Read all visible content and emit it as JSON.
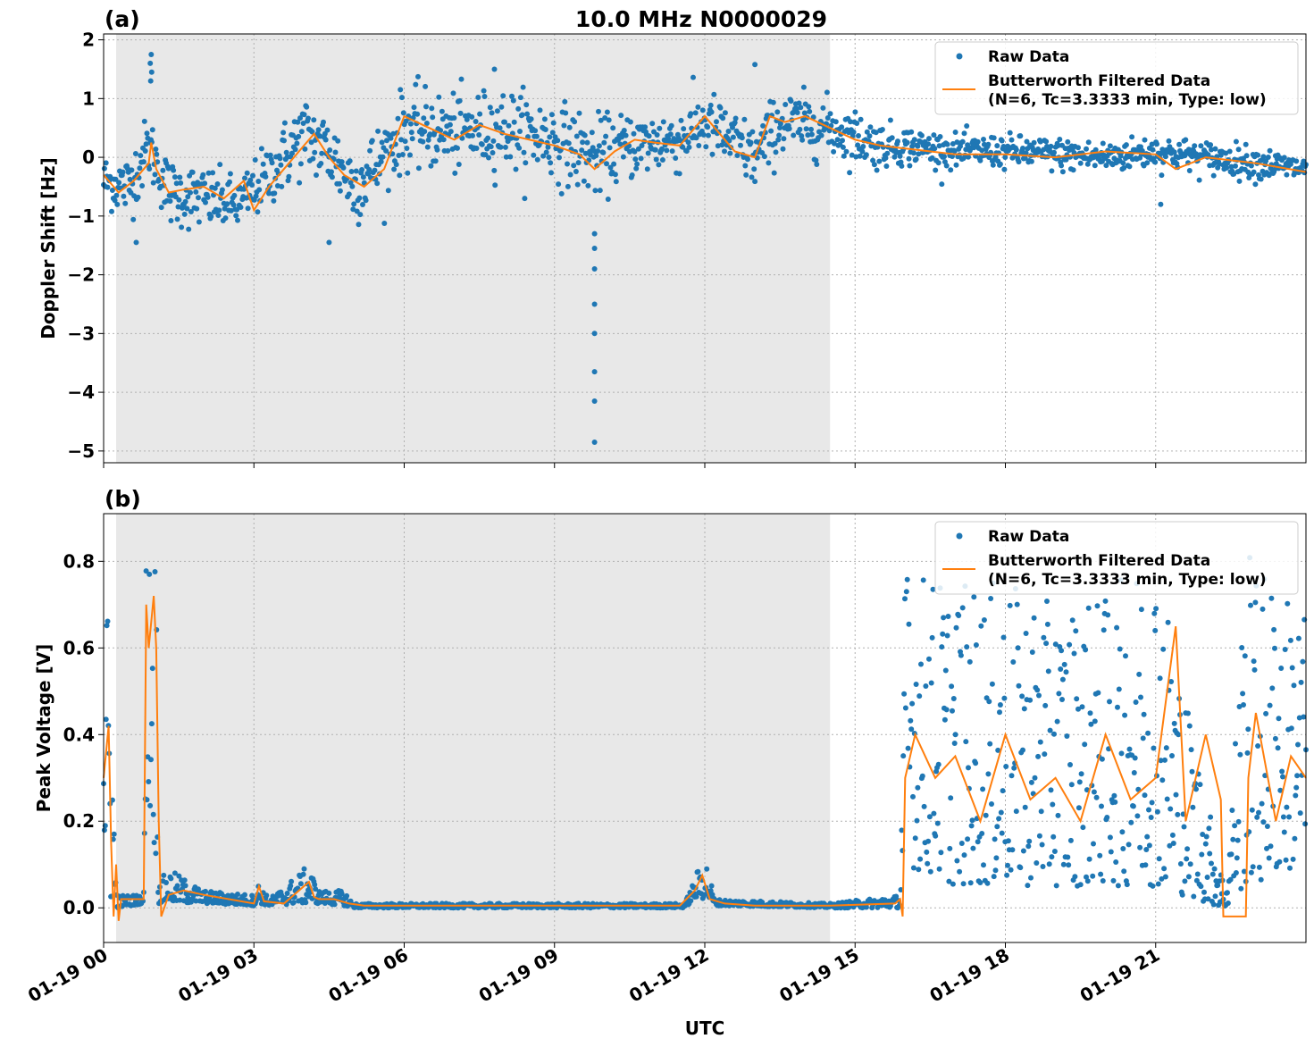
{
  "figure": {
    "title": "10.0 MHz N0000029",
    "xlabel": "UTC",
    "x_tick_labels": [
      "01-19 00",
      "01-19 03",
      "01-19 06",
      "01-19 09",
      "01-19 12",
      "01-19 15",
      "01-19 18",
      "01-19 21"
    ]
  },
  "colors": {
    "raw": "#1f77b4",
    "filtered": "#ff7f0e",
    "shade": "#e8e8e8",
    "grid": "#b0b0b0"
  },
  "chart_data": [
    {
      "type": "scatter",
      "panel_label": "(a)",
      "title": "10.0 MHz N0000029",
      "ylabel": "Doppler Shift [Hz]",
      "xlabel": "UTC",
      "x_range_hours": [
        0,
        24
      ],
      "xlim": [
        "01-19 00:00",
        "01-20 00:00"
      ],
      "ylim": [
        -5.2,
        2.1
      ],
      "y_ticks": [
        2,
        1,
        0,
        -1,
        -2,
        -3,
        -4,
        -5
      ],
      "y_tick_labels": [
        "2",
        "1",
        "0",
        "−1",
        "−2",
        "−3",
        "−4",
        "−5"
      ],
      "grid": true,
      "shaded_region_hours": [
        0.25,
        14.5
      ],
      "legend": {
        "placement": "top-right",
        "entries": [
          "Raw Data",
          "Butterworth Filtered Data",
          "(N=6, Tc=3.3333 min, Type: low)"
        ]
      },
      "series": [
        {
          "name": "Raw Data",
          "style": "points",
          "envelope_hours": [
            0,
            0.5,
            0.9,
            1.3,
            2,
            2.7,
            3.3,
            4,
            4.5,
            5,
            5.5,
            6,
            7,
            8,
            9,
            9.8,
            10.5,
            11.5,
            12,
            13,
            13.5,
            14.5,
            15.5,
            16,
            17,
            18,
            19,
            20,
            21,
            22,
            23,
            24
          ],
          "center_hz": [
            -0.4,
            -0.5,
            0.2,
            -0.6,
            -0.7,
            -0.8,
            -0.3,
            0.4,
            0.1,
            -0.5,
            -0.1,
            0.5,
            0.4,
            0.5,
            0.3,
            0.0,
            0.2,
            0.3,
            0.6,
            0.0,
            0.6,
            0.5,
            0.2,
            0.2,
            0.1,
            0.1,
            0.05,
            0.0,
            0.1,
            0.0,
            -0.1,
            -0.2
          ],
          "spread_hz": [
            0.4,
            0.5,
            0.5,
            0.5,
            0.5,
            0.4,
            0.5,
            0.6,
            0.6,
            0.6,
            0.6,
            0.6,
            0.6,
            0.6,
            0.6,
            0.6,
            0.5,
            0.5,
            0.5,
            0.5,
            0.5,
            0.45,
            0.35,
            0.3,
            0.25,
            0.25,
            0.25,
            0.25,
            0.25,
            0.25,
            0.25,
            0.2
          ],
          "outliers": [
            {
              "x": 0.95,
              "y": 1.75
            },
            {
              "x": 0.93,
              "y": 1.6
            },
            {
              "x": 0.96,
              "y": 1.45
            },
            {
              "x": 0.94,
              "y": 1.3
            },
            {
              "x": 9.8,
              "y": -1.3
            },
            {
              "x": 9.8,
              "y": -1.55
            },
            {
              "x": 9.8,
              "y": -1.9
            },
            {
              "x": 9.8,
              "y": -2.5
            },
            {
              "x": 9.8,
              "y": -3.0
            },
            {
              "x": 9.8,
              "y": -3.65
            },
            {
              "x": 9.8,
              "y": -4.15
            },
            {
              "x": 9.8,
              "y": -4.85
            },
            {
              "x": 13.0,
              "y": 1.58
            },
            {
              "x": 7.8,
              "y": 1.5
            },
            {
              "x": 4.5,
              "y": -1.45
            },
            {
              "x": 0.65,
              "y": -1.45
            },
            {
              "x": 21.1,
              "y": -0.8
            }
          ]
        },
        {
          "name": "Butterworth Filtered Data",
          "style": "line",
          "x_hours": [
            0,
            0.3,
            0.6,
            0.9,
            0.95,
            1.05,
            1.3,
            1.6,
            2.0,
            2.4,
            2.8,
            3.0,
            3.3,
            3.6,
            4.0,
            4.2,
            4.5,
            4.8,
            5.2,
            5.6,
            6.0,
            6.5,
            7.0,
            7.5,
            8.0,
            8.5,
            9.0,
            9.5,
            9.8,
            10.2,
            10.6,
            11.0,
            11.5,
            12.0,
            12.3,
            12.6,
            13.0,
            13.3,
            13.6,
            14.0,
            14.5,
            15.0,
            15.5,
            16.0,
            17.0,
            18.0,
            19.0,
            20.0,
            21.0,
            21.4,
            22.0,
            23.0,
            24.0
          ],
          "y_hz": [
            -0.3,
            -0.6,
            -0.4,
            -0.1,
            0.25,
            -0.2,
            -0.6,
            -0.55,
            -0.5,
            -0.7,
            -0.4,
            -0.9,
            -0.5,
            -0.2,
            0.2,
            0.4,
            0.0,
            -0.3,
            -0.5,
            -0.2,
            0.7,
            0.5,
            0.3,
            0.55,
            0.4,
            0.3,
            0.2,
            0.05,
            -0.2,
            0.1,
            0.3,
            0.25,
            0.2,
            0.7,
            0.4,
            0.1,
            0.0,
            0.7,
            0.6,
            0.7,
            0.5,
            0.3,
            0.2,
            0.15,
            0.05,
            0.05,
            0.0,
            0.1,
            0.05,
            -0.2,
            0.0,
            -0.1,
            -0.25
          ]
        }
      ]
    },
    {
      "type": "scatter",
      "panel_label": "(b)",
      "ylabel": "Peak Voltage [V]",
      "xlabel": "UTC",
      "x_range_hours": [
        0,
        24
      ],
      "xlim": [
        "01-19 00:00",
        "01-20 00:00"
      ],
      "ylim": [
        -0.08,
        0.91
      ],
      "y_ticks": [
        0.8,
        0.6,
        0.4,
        0.2,
        0.0
      ],
      "y_tick_labels": [
        "0.8",
        "0.6",
        "0.4",
        "0.2",
        "0.0"
      ],
      "grid": true,
      "shaded_region_hours": [
        0.25,
        14.5
      ],
      "legend": {
        "placement": "top-right",
        "entries": [
          "Raw Data",
          "Butterworth Filtered Data",
          "(N=6, Tc=3.3333 min, Type: low)"
        ]
      },
      "series": [
        {
          "name": "Raw Data",
          "style": "points",
          "envelope_hours": [
            0,
            0.1,
            0.2,
            0.25,
            0.3,
            0.8,
            0.85,
            1.05,
            1.1,
            1.3,
            2,
            3,
            3.1,
            3.3,
            4.1,
            4.3,
            4.8,
            5,
            11.6,
            11.8,
            12.0,
            12.2,
            14.5,
            15.9,
            16.0,
            17,
            18,
            19,
            20,
            21,
            22.3,
            22.4,
            22.8,
            23,
            24
          ],
          "low_v": [
            0.1,
            0.0,
            0.0,
            0.0,
            0.0,
            0.01,
            0.25,
            0.1,
            0.01,
            0.01,
            0.01,
            0.005,
            0.01,
            0.005,
            0.01,
            0.01,
            0.005,
            0.0,
            0.0,
            0.02,
            0.02,
            0.005,
            0.0,
            0.0,
            0.1,
            0.05,
            0.05,
            0.05,
            0.05,
            0.05,
            0.0,
            0.0,
            0.05,
            0.05,
            0.1
          ],
          "high_v": [
            0.6,
            0.78,
            0.3,
            0.05,
            0.03,
            0.03,
            0.87,
            0.87,
            0.06,
            0.09,
            0.04,
            0.03,
            0.06,
            0.02,
            0.1,
            0.04,
            0.04,
            0.01,
            0.01,
            0.07,
            0.13,
            0.02,
            0.01,
            0.03,
            0.8,
            0.75,
            0.75,
            0.7,
            0.72,
            0.85,
            0.1,
            0.03,
            0.84,
            0.8,
            0.7
          ]
        },
        {
          "name": "Butterworth Filtered Data",
          "style": "line",
          "x_hours": [
            0,
            0.1,
            0.15,
            0.2,
            0.25,
            0.3,
            0.35,
            0.8,
            0.85,
            0.9,
            1.0,
            1.05,
            1.1,
            1.15,
            1.3,
            1.6,
            2.0,
            2.5,
            3.0,
            3.1,
            3.2,
            3.6,
            4.1,
            4.2,
            4.3,
            4.6,
            4.9,
            5.2,
            8,
            11.5,
            11.8,
            11.95,
            12.1,
            12.4,
            13,
            14.5,
            15.8,
            15.9,
            15.95,
            16.0,
            16.2,
            16.6,
            17,
            17.5,
            18,
            18.5,
            19,
            19.5,
            20,
            20.5,
            21,
            21.4,
            21.6,
            22,
            22.3,
            22.35,
            22.8,
            22.85,
            23,
            23.4,
            23.7,
            24
          ],
          "y_v": [
            0.3,
            0.42,
            0.15,
            -0.02,
            0.1,
            -0.03,
            0.02,
            0.02,
            0.7,
            0.6,
            0.72,
            0.6,
            0.2,
            -0.02,
            0.03,
            0.04,
            0.03,
            0.02,
            0.01,
            0.05,
            0.015,
            0.01,
            0.06,
            0.025,
            0.02,
            0.02,
            0.01,
            0.005,
            0.005,
            0.005,
            0.04,
            0.075,
            0.02,
            0.01,
            0.005,
            0.005,
            0.01,
            0.02,
            -0.02,
            0.3,
            0.4,
            0.3,
            0.35,
            0.2,
            0.4,
            0.25,
            0.3,
            0.2,
            0.4,
            0.25,
            0.3,
            0.65,
            0.2,
            0.4,
            0.25,
            -0.02,
            -0.02,
            0.3,
            0.45,
            0.2,
            0.35,
            0.3
          ]
        }
      ]
    }
  ]
}
